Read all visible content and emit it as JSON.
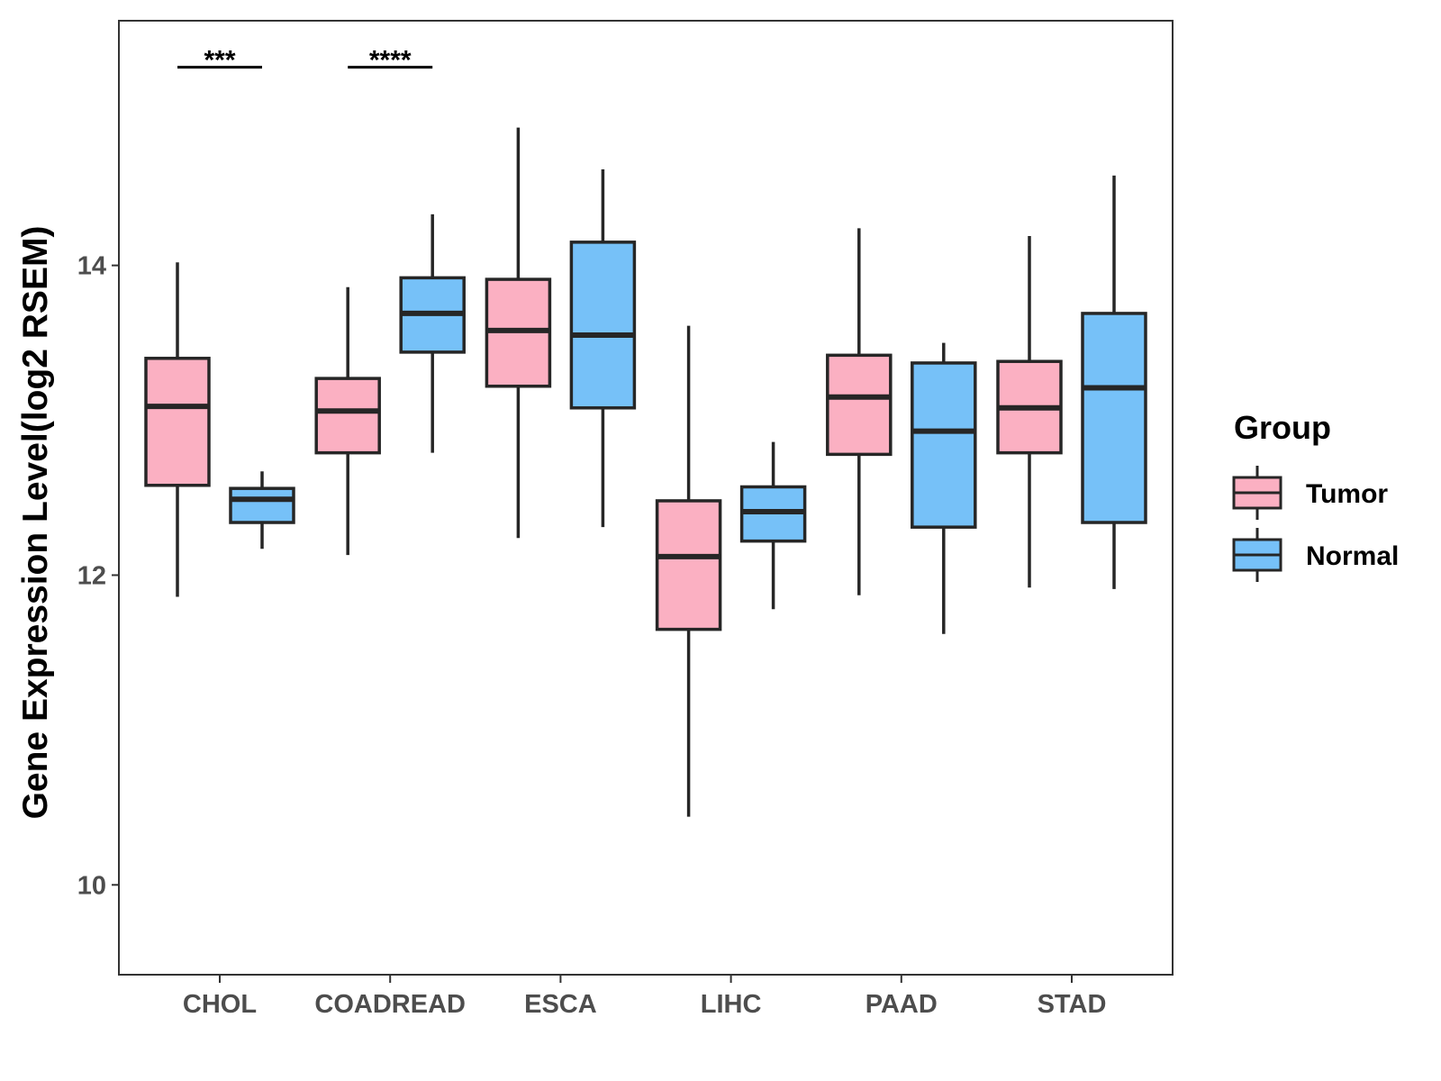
{
  "chart_data": {
    "type": "boxplot",
    "title": "",
    "xlabel": "",
    "ylabel": "Gene Expression Level(log2 RSEM)",
    "ylim": [
      9.42,
      15.58
    ],
    "yticks": [
      10,
      12,
      14
    ],
    "ytick_labels": [
      "10",
      "12",
      "14"
    ],
    "categories": [
      "CHOL",
      "COADREAD",
      "ESCA",
      "LIHC",
      "PAAD",
      "STAD"
    ],
    "legend": {
      "title": "Group",
      "position": "right",
      "entries": [
        {
          "name": "Tumor",
          "color": "#fbb0c2"
        },
        {
          "name": "Normal",
          "color": "#76c1f8"
        }
      ]
    },
    "series": [
      {
        "name": "Tumor",
        "color": "#fbb0c2",
        "boxes": [
          {
            "category": "CHOL",
            "min": 11.86,
            "q1": 12.58,
            "median": 13.09,
            "q3": 13.4,
            "max": 14.02
          },
          {
            "category": "COADREAD",
            "min": 12.13,
            "q1": 12.79,
            "median": 13.06,
            "q3": 13.27,
            "max": 13.86
          },
          {
            "category": "ESCA",
            "min": 12.24,
            "q1": 13.22,
            "median": 13.58,
            "q3": 13.91,
            "max": 14.89
          },
          {
            "category": "LIHC",
            "min": 10.44,
            "q1": 11.65,
            "median": 12.12,
            "q3": 12.48,
            "max": 13.61
          },
          {
            "category": "PAAD",
            "min": 11.87,
            "q1": 12.78,
            "median": 13.15,
            "q3": 13.42,
            "max": 14.24
          },
          {
            "category": "STAD",
            "min": 11.92,
            "q1": 12.79,
            "median": 13.08,
            "q3": 13.38,
            "max": 14.19
          }
        ]
      },
      {
        "name": "Normal",
        "color": "#76c1f8",
        "boxes": [
          {
            "category": "CHOL",
            "min": 12.17,
            "q1": 12.34,
            "median": 12.49,
            "q3": 12.56,
            "max": 12.67
          },
          {
            "category": "COADREAD",
            "min": 12.79,
            "q1": 13.44,
            "median": 13.69,
            "q3": 13.92,
            "max": 14.33
          },
          {
            "category": "ESCA",
            "min": 12.31,
            "q1": 13.08,
            "median": 13.55,
            "q3": 14.15,
            "max": 14.62
          },
          {
            "category": "LIHC",
            "min": 11.78,
            "q1": 12.22,
            "median": 12.41,
            "q3": 12.57,
            "max": 12.86
          },
          {
            "category": "PAAD",
            "min": 11.62,
            "q1": 12.31,
            "median": 12.93,
            "q3": 13.37,
            "max": 13.5
          },
          {
            "category": "STAD",
            "min": 11.91,
            "q1": 12.34,
            "median": 13.21,
            "q3": 13.69,
            "max": 14.58
          }
        ]
      }
    ],
    "annotations": [
      {
        "category": "CHOL",
        "label": "***",
        "y": 15.28
      },
      {
        "category": "COADREAD",
        "label": "****",
        "y": 15.28
      }
    ]
  }
}
